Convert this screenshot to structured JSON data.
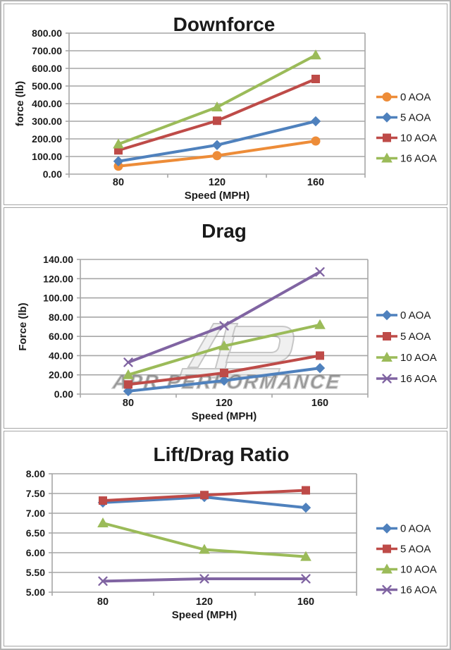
{
  "page": {
    "background": "#ffffff",
    "frame_color": "#a6a6a6"
  },
  "colors": {
    "series_blue": "#4F81BD",
    "series_red": "#BE4B48",
    "series_green": "#9BBB59",
    "series_purple": "#8064A2",
    "series_orange": "#ED8C38",
    "gridline": "#a6a6a6",
    "text": "#1a1a1a",
    "watermark_gray": "#9a9a9a"
  },
  "chart_data": [
    {
      "type": "line",
      "title": "Downforce",
      "xlabel": "Speed (MPH)",
      "ylabel": "force (lb)",
      "x": [
        80,
        120,
        160
      ],
      "x_tick_labels": [
        "80",
        "120",
        "160"
      ],
      "ylim": [
        0,
        800
      ],
      "ytick_step": 100,
      "ytick_labels": [
        "0.00",
        "100.00",
        "200.00",
        "300.00",
        "400.00",
        "500.00",
        "600.00",
        "700.00",
        "800.00"
      ],
      "grid": true,
      "legend_position": "right",
      "series": [
        {
          "name": "0 AOA",
          "marker": "circle",
          "color": "#ED8C38",
          "values": [
            45,
            105,
            188
          ]
        },
        {
          "name": "5 AOA",
          "marker": "diamond",
          "color": "#4F81BD",
          "values": [
            73,
            165,
            300
          ]
        },
        {
          "name": "10 AOA",
          "marker": "square",
          "color": "#BE4B48",
          "values": [
            135,
            303,
            540
          ]
        },
        {
          "name": "16 AOA",
          "marker": "triangle",
          "color": "#9BBB59",
          "values": [
            170,
            380,
            675
          ]
        }
      ]
    },
    {
      "type": "line",
      "title": "Drag",
      "xlabel": "Speed (MPH)",
      "ylabel": "Force (lb)",
      "x": [
        80,
        120,
        160
      ],
      "x_tick_labels": [
        "80",
        "120",
        "160"
      ],
      "ylim": [
        0,
        140
      ],
      "ytick_step": 20,
      "ytick_labels": [
        "0.00",
        "20.00",
        "40.00",
        "60.00",
        "80.00",
        "100.00",
        "120.00",
        "140.00"
      ],
      "grid": true,
      "legend_position": "right",
      "watermark": {
        "text": "APR PERFORMANCE",
        "logo": "apr-monogram-logo"
      },
      "series": [
        {
          "name": "0 AOA",
          "marker": "diamond",
          "color": "#4F81BD",
          "values": [
            3,
            14,
            27
          ]
        },
        {
          "name": "5 AOA",
          "marker": "square",
          "color": "#BE4B48",
          "values": [
            10,
            22,
            40
          ]
        },
        {
          "name": "10 AOA",
          "marker": "triangle",
          "color": "#9BBB59",
          "values": [
            20,
            50,
            72
          ]
        },
        {
          "name": "16 AOA",
          "marker": "x",
          "color": "#8064A2",
          "values": [
            33,
            71,
            127
          ]
        }
      ]
    },
    {
      "type": "line",
      "title": "Lift/Drag Ratio",
      "xlabel": "Speed (MPH)",
      "ylabel": "",
      "x": [
        80,
        120,
        160
      ],
      "x_tick_labels": [
        "80",
        "120",
        "160"
      ],
      "ylim": [
        5,
        8
      ],
      "ytick_step": 0.5,
      "ytick_labels": [
        "5.00",
        "5.50",
        "6.00",
        "6.50",
        "7.00",
        "7.50",
        "8.00"
      ],
      "grid": true,
      "legend_position": "right",
      "series": [
        {
          "name": "0 AOA",
          "marker": "diamond",
          "color": "#4F81BD",
          "values": [
            7.27,
            7.41,
            7.14
          ]
        },
        {
          "name": "5 AOA",
          "marker": "square",
          "color": "#BE4B48",
          "values": [
            7.32,
            7.46,
            7.58
          ]
        },
        {
          "name": "10 AOA",
          "marker": "triangle",
          "color": "#9BBB59",
          "values": [
            6.75,
            6.08,
            5.9
          ]
        },
        {
          "name": "16 AOA",
          "marker": "x",
          "color": "#8064A2",
          "values": [
            5.28,
            5.34,
            5.34
          ]
        }
      ]
    }
  ]
}
